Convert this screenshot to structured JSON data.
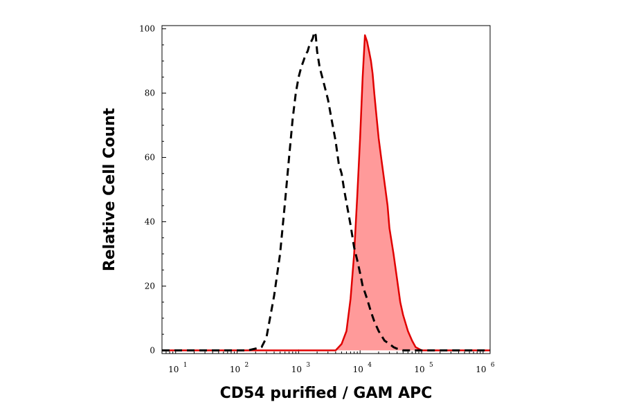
{
  "chart_data": {
    "type": "area",
    "title": "",
    "xlabel": "CD54 purified / GAM APC",
    "ylabel": "Relative Cell Count",
    "x_scale": "log",
    "xlim": [
      6,
      1300000
    ],
    "ylim": [
      -1,
      101
    ],
    "y_ticks": [
      {
        "value": 0,
        "label": "0"
      },
      {
        "value": 20,
        "label": "20"
      },
      {
        "value": 40,
        "label": "40"
      },
      {
        "value": 60,
        "label": "60"
      },
      {
        "value": 80,
        "label": "80"
      },
      {
        "value": 100,
        "label": "100"
      }
    ],
    "x_ticks": [
      {
        "value": 10,
        "base": "10",
        "exp": "1"
      },
      {
        "value": 100,
        "base": "10",
        "exp": "2"
      },
      {
        "value": 1000,
        "base": "10",
        "exp": "3"
      },
      {
        "value": 10000,
        "base": "10",
        "exp": "4"
      },
      {
        "value": 100000,
        "base": "10",
        "exp": "5"
      },
      {
        "value": 1000000,
        "base": "10",
        "exp": "6"
      }
    ],
    "grid": false,
    "series": [
      {
        "style": "dashed",
        "color": "#000000",
        "x": [
          5,
          150,
          250,
          300,
          350,
          400,
          500,
          600,
          700,
          800,
          900,
          1000,
          1100,
          1200,
          1300,
          1400,
          1500,
          1600,
          1700,
          1800,
          1900,
          2000,
          2200,
          2500,
          3000,
          3500,
          4000,
          4500,
          5000,
          5500,
          6000,
          7000,
          8000,
          9000,
          10000,
          11000,
          12000,
          13000,
          15000,
          17000,
          20000,
          25000,
          30000,
          35000,
          40000,
          50000,
          60000,
          1500000
        ],
        "y": [
          0,
          0,
          1,
          4,
          11,
          17,
          30,
          46,
          60,
          72,
          80,
          85,
          88,
          90,
          92,
          93,
          95,
          96,
          97,
          99,
          98,
          93,
          88,
          84,
          78,
          71,
          65,
          58,
          55,
          50,
          46,
          39,
          32,
          28,
          24,
          20,
          18,
          16,
          12,
          9,
          6,
          3,
          2,
          1,
          0.5,
          0,
          0,
          0
        ]
      },
      {
        "style": "filled",
        "color": "#e00000",
        "fill": "#ff9a9a",
        "x": [
          5,
          4000,
          5000,
          6000,
          7000,
          8000,
          9000,
          10000,
          11000,
          12000,
          13000,
          14000,
          15000,
          16000,
          17000,
          18000,
          20000,
          22000,
          25000,
          28000,
          30000,
          35000,
          40000,
          45000,
          50000,
          60000,
          70000,
          80000,
          100000,
          1500000
        ],
        "y": [
          0,
          0,
          2,
          6,
          16,
          30,
          48,
          66,
          85,
          98,
          96,
          93,
          90,
          86,
          80,
          75,
          66,
          60,
          52,
          45,
          38,
          30,
          22,
          15,
          11,
          6,
          3,
          1,
          0,
          0
        ]
      }
    ]
  }
}
